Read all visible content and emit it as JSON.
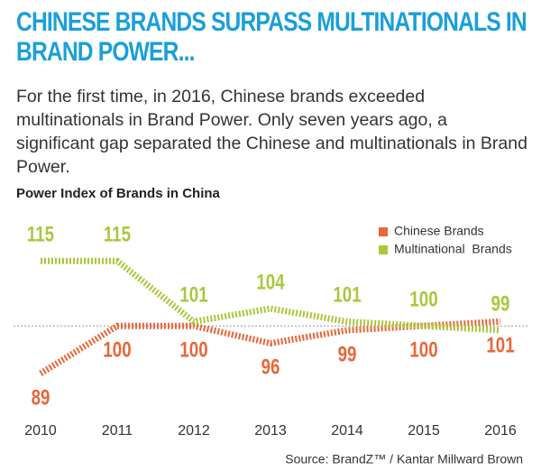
{
  "chart_data": {
    "type": "line",
    "title_lines": [
      "CHINESE BRANDS SURPASS MULTINATIONALS IN",
      "BRAND POWER..."
    ],
    "subtitle": "For the first time, in 2016, Chinese brands exceeded multinationals in Brand Power. Only seven years ago, a significant gap separated the Chinese and multinationals in Brand Power.",
    "chart_title": "Power Index of Brands in China",
    "categories": [
      "2010",
      "2011",
      "2012",
      "2013",
      "2014",
      "2015",
      "2016"
    ],
    "series": [
      {
        "name": "Chinese Brands",
        "color": "#e8663a",
        "values": [
          89,
          100,
          100,
          96,
          99,
          100,
          101
        ]
      },
      {
        "name": "Multinational  Brands",
        "color": "#a8c83c",
        "values": [
          115,
          115,
          101,
          104,
          101,
          100,
          99
        ]
      }
    ],
    "ylim": [
      84,
      119
    ],
    "reference_line": 100,
    "source": "Source: BrandZ™ / Kantar Millward Brown"
  }
}
